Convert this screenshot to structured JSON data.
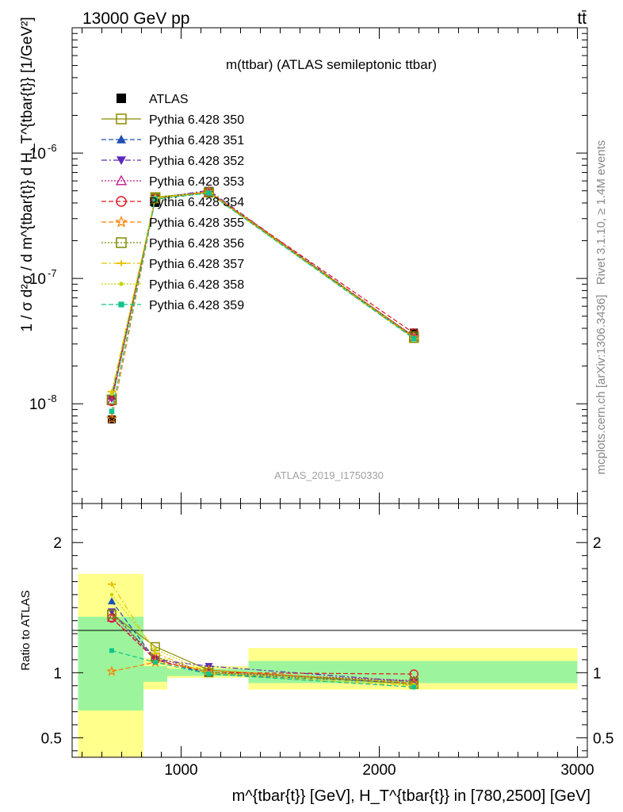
{
  "header": {
    "energy_label": "13000 GeV pp",
    "process_label": "tt̄",
    "rivet_label": "Rivet 3.1.10, ≥ 1.4M events",
    "site_label": "mcplots.cern.ch [arXiv:1306.3436]"
  },
  "chart_data": [
    {
      "type": "line",
      "title": "m(ttbar) (ATLAS semileptonic ttbar)",
      "watermark": "ATLAS_2019_I1750330",
      "ylabel": "1 / σ d²σ / d m^{tbar{t}} d H_T^{tbar{t}} [1/GeV²]",
      "xlim": [
        450,
        3050
      ],
      "ylim": [
        1.6e-09,
        1e-05
      ],
      "yscale": "log",
      "x": [
        650,
        870,
        1140,
        2175
      ],
      "y_ticks": [
        "10^-8",
        "10^-7",
        "10^-6"
      ],
      "series": [
        {
          "name": "ATLAS",
          "color": "#000000",
          "marker": "square-filled",
          "values": [
            7.5e-09,
            4e-07,
            4.85e-07,
            3.7e-08
          ]
        },
        {
          "name": "Pythia 6.428 350",
          "color": "#8b8b00",
          "marker": "square-open",
          "dash": "solid",
          "values": [
            1.08e-08,
            4.45e-07,
            4.9e-07,
            3.35e-08
          ]
        },
        {
          "name": "Pythia 6.428 351",
          "color": "#1f4fb4",
          "marker": "triangle-up",
          "dash": "dashed",
          "values": [
            1.15e-08,
            4.3e-07,
            4.8e-07,
            3.4e-08
          ]
        },
        {
          "name": "Pythia 6.428 352",
          "color": "#5a2ab8",
          "marker": "triangle-down",
          "dash": "dashdot",
          "values": [
            1.1e-08,
            4.35e-07,
            5.05e-07,
            3.4e-08
          ]
        },
        {
          "name": "Pythia 6.428 353",
          "color": "#c0188c",
          "marker": "triangle-up-open",
          "dash": "dotted",
          "values": [
            1.05e-08,
            4.35e-07,
            4.85e-07,
            3.45e-08
          ]
        },
        {
          "name": "Pythia 6.428 354",
          "color": "#e0141e",
          "marker": "circle-open",
          "dash": "dashed",
          "values": [
            1.05e-08,
            4.35e-07,
            4.9e-07,
            3.65e-08
          ]
        },
        {
          "name": "Pythia 6.428 355",
          "color": "#ff7f00",
          "marker": "star-open",
          "dash": "dashed",
          "values": [
            7.6e-09,
            4.3e-07,
            4.95e-07,
            3.4e-08
          ]
        },
        {
          "name": "Pythia 6.428 356",
          "color": "#7a8a00",
          "marker": "square-open",
          "dash": "dotted",
          "values": [
            1.08e-08,
            4.35e-07,
            4.85e-07,
            3.45e-08
          ]
        },
        {
          "name": "Pythia 6.428 357",
          "color": "#e6c200",
          "marker": "dash-cross",
          "dash": "dashdot",
          "values": [
            1.25e-08,
            4.4e-07,
            4.8e-07,
            3.3e-08
          ]
        },
        {
          "name": "Pythia 6.428 358",
          "color": "#c8d400",
          "marker": "dot",
          "dash": "dotted",
          "values": [
            1.2e-08,
            4.45e-07,
            4.85e-07,
            3.35e-08
          ]
        },
        {
          "name": "Pythia 6.428 359",
          "color": "#12c48c",
          "marker": "square-small",
          "dash": "dashed",
          "values": [
            8.7e-09,
            4.3e-07,
            4.8e-07,
            3.3e-08
          ]
        }
      ]
    },
    {
      "type": "line",
      "ylabel": "Ratio to ATLAS",
      "xlabel": "m^{tbar{t}} [GeV], H_T^{tbar{t}} in [780,2500] [GeV]",
      "xlim": [
        450,
        3050
      ],
      "ylim": [
        0.35,
        2.3
      ],
      "y_ticks": [
        0.5,
        1,
        2
      ],
      "x_ticks": [
        1000,
        2000,
        3000
      ],
      "uncertainty_bands": [
        {
          "x": [
            480,
            810
          ],
          "yellow": [
            0.35,
            1.76
          ],
          "green": [
            0.71,
            1.43
          ]
        },
        {
          "x": [
            810,
            930
          ],
          "yellow": [
            0.87,
            1.11
          ],
          "green": [
            0.93,
            1.05
          ]
        },
        {
          "x": [
            930,
            1340
          ],
          "yellow": [
            0.96,
            1.05
          ],
          "green": [
            0.975,
            1.03
          ]
        },
        {
          "x": [
            1340,
            3000
          ],
          "yellow": [
            0.87,
            1.19
          ],
          "green": [
            0.92,
            1.09
          ]
        }
      ],
      "x": [
        650,
        870,
        1140,
        2175
      ],
      "series": [
        {
          "name": "Pythia 6.428 350",
          "values": [
            1.45,
            1.2,
            1.02,
            0.91
          ]
        },
        {
          "name": "Pythia 6.428 351",
          "values": [
            1.55,
            1.1,
            0.99,
            0.92
          ]
        },
        {
          "name": "Pythia 6.428 352",
          "values": [
            1.47,
            1.1,
            1.05,
            0.93
          ]
        },
        {
          "name": "Pythia 6.428 353",
          "values": [
            1.42,
            1.12,
            1.0,
            0.94
          ]
        },
        {
          "name": "Pythia 6.428 354",
          "values": [
            1.42,
            1.1,
            1.0,
            0.99
          ]
        },
        {
          "name": "Pythia 6.428 355",
          "values": [
            1.01,
            1.08,
            1.02,
            0.92
          ]
        },
        {
          "name": "Pythia 6.428 356",
          "values": [
            1.45,
            1.12,
            1.0,
            0.93
          ]
        },
        {
          "name": "Pythia 6.428 357",
          "values": [
            1.68,
            1.15,
            0.99,
            0.9
          ]
        },
        {
          "name": "Pythia 6.428 358",
          "values": [
            1.6,
            1.18,
            1.0,
            0.91
          ]
        },
        {
          "name": "Pythia 6.428 359",
          "values": [
            1.17,
            1.08,
            0.99,
            0.89
          ]
        }
      ]
    }
  ]
}
